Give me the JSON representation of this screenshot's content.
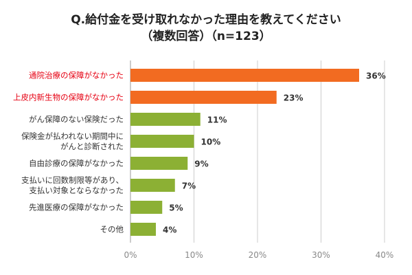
{
  "title_line1": "Q.給付金を受け取れなかった理由を教えてください",
  "title_line2": "（複数回答）（n=123）",
  "chart_data": {
    "type": "bar",
    "orientation": "horizontal",
    "title": "Q.給付金を受け取れなかった理由を教えてください （複数回答）（n=123）",
    "categories": [
      [
        "通院治療の保障がなかった"
      ],
      [
        "上皮内新生物の保障がなかった"
      ],
      [
        "がん保障のない保険だった"
      ],
      [
        "保険金が払われない期間中に",
        "がんと診断された"
      ],
      [
        "自由診療の保障がなかった"
      ],
      [
        "支払いに回数制限等があり、",
        "支払い対象とならなかった"
      ],
      [
        "先進医療の保障がなかった"
      ],
      [
        "その他"
      ]
    ],
    "values": [
      36,
      23,
      11,
      10,
      9,
      7,
      5,
      4
    ],
    "value_labels": [
      "36%",
      "23%",
      "11%",
      "10%",
      "9%",
      "7%",
      "5%",
      "4%"
    ],
    "highlight": [
      true,
      true,
      false,
      false,
      false,
      false,
      false,
      false
    ],
    "xlim": [
      0,
      40
    ],
    "xticks": [
      "0%",
      "10%",
      "20%",
      "30%",
      "40%"
    ],
    "grid": "vertical",
    "colors": {
      "highlight": "#f26b21",
      "normal": "#8cb034",
      "highlight_label": "#e60012",
      "label": "#333333"
    }
  }
}
